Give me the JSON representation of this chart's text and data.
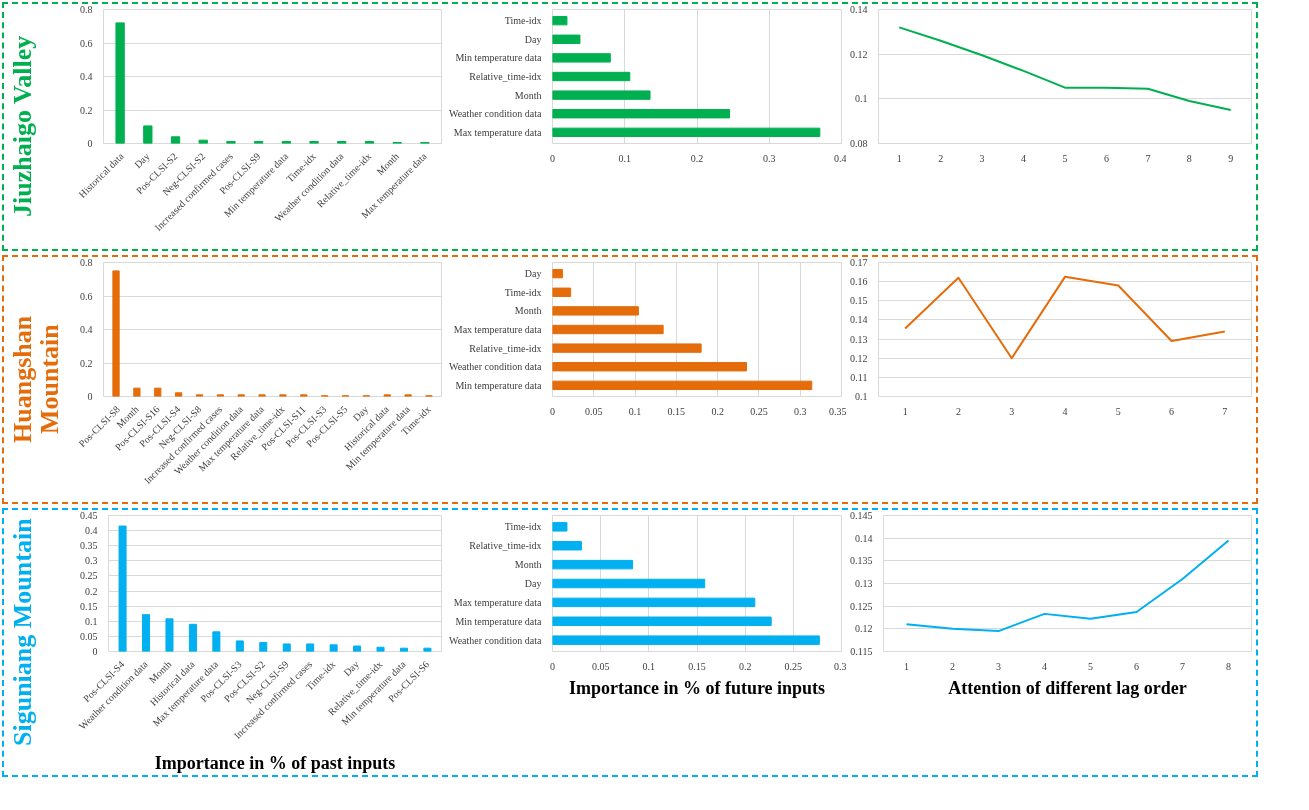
{
  "chart_data": [
    {
      "type": "bar",
      "ylabel": "Jiuzhaigo Valley",
      "categories": [
        "Historical data",
        "Day",
        "Pos-CLSI-S2",
        "Neg-CLSI-S2",
        "Increased confirmed cases",
        "Pos-CLSI-S9",
        "Min temperature data",
        "Time-idx",
        "Weather condition data",
        "Relative_time-idx",
        "Month",
        "Max temperature data"
      ],
      "values": [
        0.72,
        0.105,
        0.04,
        0.02,
        0.012,
        0.012,
        0.012,
        0.012,
        0.012,
        0.012,
        0.006,
        0.006
      ],
      "color": "#00b050",
      "ylim": [
        0,
        0.8
      ],
      "yticks": [
        0,
        0.2,
        0.4,
        0.6,
        0.8
      ],
      "grid": "y"
    },
    {
      "type": "bar",
      "orientation": "horizontal",
      "categories": [
        "Time-idx",
        "Day",
        "Min temperature data",
        "Relative_time-idx",
        "Month",
        "Weather condition data",
        "Max temperature data"
      ],
      "values": [
        0.02,
        0.038,
        0.08,
        0.107,
        0.135,
        0.245,
        0.37
      ],
      "color": "#00b050",
      "xlim": [
        0,
        0.4
      ],
      "xticks": [
        0,
        0.1,
        0.2,
        0.3,
        0.4
      ],
      "grid": "x"
    },
    {
      "type": "line",
      "categories": [
        "1",
        "2",
        "3",
        "4",
        "5",
        "6",
        "7",
        "8",
        "9"
      ],
      "values": [
        0.132,
        0.126,
        0.1195,
        0.1125,
        0.105,
        0.105,
        0.1045,
        0.099,
        0.095
      ],
      "color": "#00b050",
      "ylim": [
        0.08,
        0.14
      ],
      "yticks": [
        0.08,
        0.1,
        0.12,
        0.14
      ],
      "grid": "y"
    },
    {
      "type": "bar",
      "ylabel": "Huangshan Mountain",
      "categories": [
        "Pos-CLSI-S8",
        "Month",
        "Pos-CLSI-S16",
        "Pos-CLSI-S4",
        "Neg-CLSI-S8",
        "Increased confirmed cases",
        "Weather condition data",
        "Max temperature data",
        "Relative_time-idx",
        "Pos-CLSI-S11",
        "Pos-CLSI-S3",
        "Pos-CLSI-S5",
        "Day",
        "Historical data",
        "Min temperature data",
        "Time-idx"
      ],
      "values": [
        0.75,
        0.05,
        0.05,
        0.022,
        0.01,
        0.01,
        0.01,
        0.01,
        0.01,
        0.01,
        0.005,
        0.005,
        0.005,
        0.01,
        0.01,
        0.005
      ],
      "color": "#e46c0a",
      "ylim": [
        0,
        0.8
      ],
      "yticks": [
        0,
        0.2,
        0.4,
        0.6,
        0.8
      ],
      "grid": "y"
    },
    {
      "type": "bar",
      "orientation": "horizontal",
      "categories": [
        "Day",
        "Time-idx",
        "Month",
        "Max temperature data",
        "Relative_time-idx",
        "Weather condition data",
        "Min temperature data"
      ],
      "values": [
        0.012,
        0.022,
        0.104,
        0.134,
        0.18,
        0.235,
        0.314
      ],
      "color": "#e46c0a",
      "xlim": [
        0,
        0.35
      ],
      "xticks": [
        0,
        0.05,
        0.1,
        0.15,
        0.2,
        0.25,
        0.3,
        0.35
      ],
      "grid": "x"
    },
    {
      "type": "line",
      "categories": [
        "1",
        "2",
        "3",
        "4",
        "5",
        "6",
        "7"
      ],
      "values": [
        0.1355,
        0.162,
        0.12,
        0.1625,
        0.158,
        0.129,
        0.134
      ],
      "color": "#e46c0a",
      "ylim": [
        0.1,
        0.17
      ],
      "yticks": [
        0.1,
        0.11,
        0.12,
        0.13,
        0.14,
        0.15,
        0.16,
        0.17
      ],
      "grid": "y"
    },
    {
      "type": "bar",
      "ylabel": "Siguniang Mountain",
      "xlabel": "Importance in % of past inputs",
      "categories": [
        "Pos-CLSI-S4",
        "Weather condition data",
        "Month",
        "Historical data",
        "Max temperature data",
        "Pos-CLSI-S3",
        "Pos-CLSI-S2",
        "Neg-CLSI-S9",
        "Increased confirmed cases",
        "Time-idx",
        "Day",
        "Relative_time-idx",
        "Min temperature data",
        "Pos-CLSI-S6"
      ],
      "values": [
        0.415,
        0.122,
        0.108,
        0.09,
        0.065,
        0.035,
        0.03,
        0.025,
        0.025,
        0.022,
        0.018,
        0.014,
        0.011,
        0.011
      ],
      "color": "#00b0f0",
      "ylim": [
        0,
        0.45
      ],
      "yticks": [
        0,
        0.05,
        0.1,
        0.15,
        0.2,
        0.25,
        0.3,
        0.35,
        0.4,
        0.45
      ],
      "grid": "y"
    },
    {
      "type": "bar",
      "orientation": "horizontal",
      "xlabel": "Importance in % of future inputs",
      "categories": [
        "Time-idx",
        "Relative_time-idx",
        "Month",
        "Day",
        "Max temperature data",
        "Min temperature data",
        "Weather condition data"
      ],
      "values": [
        0.015,
        0.03,
        0.083,
        0.158,
        0.21,
        0.227,
        0.277
      ],
      "color": "#00b0f0",
      "xlim": [
        0,
        0.3
      ],
      "xticks": [
        0,
        0.05,
        0.1,
        0.15,
        0.2,
        0.25,
        0.3
      ],
      "grid": "x"
    },
    {
      "type": "line",
      "xlabel": "Attention of different lag order",
      "categories": [
        "1",
        "2",
        "3",
        "4",
        "5",
        "6",
        "7",
        "8"
      ],
      "values": [
        0.121,
        0.12,
        0.1195,
        0.1233,
        0.1222,
        0.1237,
        0.131,
        0.1395
      ],
      "color": "#00b0f0",
      "ylim": [
        0.115,
        0.145
      ],
      "yticks": [
        0.115,
        0.12,
        0.125,
        0.13,
        0.135,
        0.14,
        0.145
      ],
      "grid": "y"
    }
  ]
}
